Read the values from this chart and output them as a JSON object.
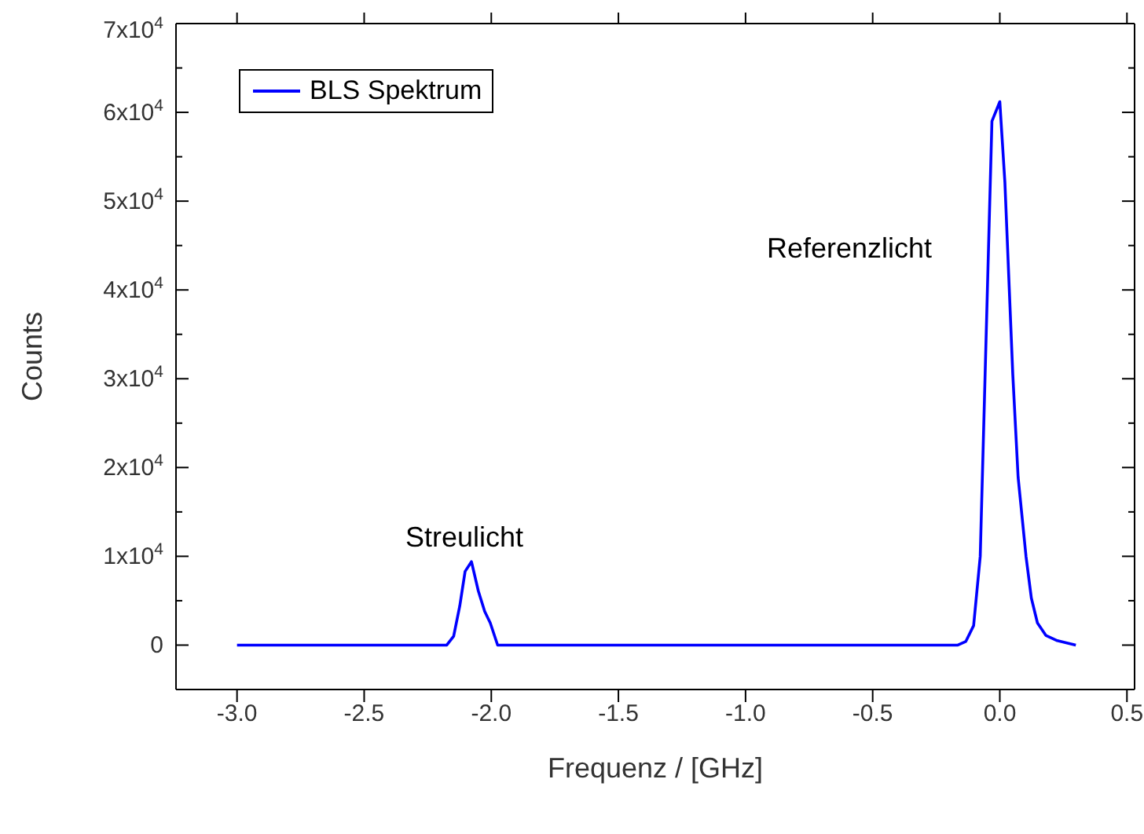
{
  "chart_data": {
    "type": "line",
    "xlabel": "Frequenz / [GHz]",
    "ylabel": "Counts",
    "x": [
      -3.0,
      -2.175,
      -2.148,
      -2.124,
      -2.103,
      -2.078,
      -2.051,
      -2.026,
      -2.004,
      -1.975,
      -0.165,
      -0.134,
      -0.103,
      -0.077,
      -0.031,
      0.0,
      0.02,
      0.051,
      0.072,
      0.103,
      0.124,
      0.148,
      0.181,
      0.226,
      0.299
    ],
    "series": [
      {
        "name": "BLS Spektrum",
        "color": "#0000ff",
        "values": [
          0,
          0,
          1000,
          4400,
          8300,
          9400,
          6100,
          3800,
          2500,
          0,
          0,
          400,
          2200,
          10000,
          59000,
          61200,
          52100,
          30500,
          18900,
          10000,
          5300,
          2500,
          1100,
          500,
          0
        ]
      }
    ],
    "xlim": [
      -3.24,
      0.53
    ],
    "xticks": [
      {
        "value": -3,
        "label": "-3.0"
      },
      -2.5,
      {
        "value": -2,
        "label": "-2.0"
      },
      -1.5,
      {
        "value": -1,
        "label": "-1.0"
      },
      -0.5,
      {
        "value": 0,
        "label": "0.0"
      },
      0.5
    ],
    "ylim": [
      -5000,
      70000
    ],
    "yticks": [
      {
        "value": -5000,
        "label": null
      },
      {
        "value": 0,
        "label": "0"
      },
      {
        "value": 5000,
        "label": null
      },
      {
        "value": 10000,
        "label": "1x10$^{4}$"
      },
      {
        "value": 15000,
        "label": null
      },
      {
        "value": 20000,
        "label": "2x10$^{4}$"
      },
      {
        "value": 25000,
        "label": null
      },
      {
        "value": 30000,
        "label": "3x10$^{4}$"
      },
      {
        "value": 35000,
        "label": null
      },
      {
        "value": 40000,
        "label": "4x10$^{4}$"
      },
      {
        "value": 45000,
        "label": null
      },
      {
        "value": 50000,
        "label": "5x10$^{4}$"
      },
      {
        "value": 55000,
        "label": null
      },
      {
        "value": 60000,
        "label": "6x10$^{4}$"
      },
      {
        "value": 65000,
        "label": null
      },
      {
        "value": 70000,
        "label": "7x10$^{4}$"
      }
    ],
    "annotations": [
      "Streulicht",
      "Referenzlicht"
    ],
    "legend": "top left",
    "grid": false,
    "marker": "none",
    "line_style": "solid"
  }
}
